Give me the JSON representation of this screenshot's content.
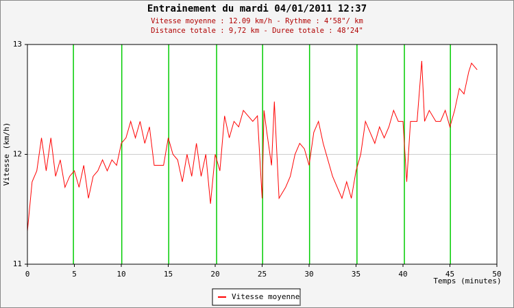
{
  "chart_data": {
    "type": "line",
    "title": "Entrainement du mardi 04/01/2011 12:37",
    "subtitle": [
      "Vitesse moyenne : 12.09 km/h - Rythme : 4’58\"/ km",
      "Distance totale : 9,72 km - Duree totale : 48’24\""
    ],
    "x_label": "Temps (minutes)",
    "y_label": "Vitesse (km/h)",
    "xlim": [
      0,
      50
    ],
    "xticks": [
      0,
      5,
      10,
      15,
      20,
      25,
      30,
      35,
      40,
      45,
      50
    ],
    "ylim": [
      11,
      13
    ],
    "yticks": [
      11,
      12,
      13
    ],
    "grid": true,
    "markers": [
      4.9,
      10.05,
      15.05,
      20.15,
      25.05,
      30.05,
      35.1,
      40.15,
      45.05
    ],
    "marker_color": "#00cc00",
    "legend": "bottom",
    "series": [
      {
        "name": "Vitesse moyenne",
        "color": "#ff0000",
        "x": [
          0,
          0.5,
          1,
          1.5,
          2,
          2.5,
          3,
          3.5,
          4,
          4.5,
          5,
          5.5,
          6,
          6.5,
          7,
          7.5,
          8,
          8.5,
          9,
          9.5,
          10,
          10.5,
          11,
          11.5,
          12,
          12.5,
          13,
          13.5,
          14,
          14.5,
          15,
          15.5,
          16,
          16.5,
          17,
          17.5,
          18,
          18.5,
          19,
          19.5,
          20,
          20.5,
          21,
          21.5,
          22,
          22.5,
          23,
          23.5,
          24,
          24.5,
          25,
          25.2,
          25.5,
          26,
          26.3,
          26.8,
          27.5,
          28,
          28.5,
          29,
          29.5,
          30,
          30.5,
          31,
          31.5,
          32,
          32.5,
          33,
          33.5,
          34,
          34.5,
          35,
          35.5,
          36,
          36.5,
          37,
          37.5,
          38,
          38.5,
          39,
          39.5,
          40,
          40.4,
          40.8,
          41.5,
          42,
          42.3,
          42.8,
          43.5,
          44,
          44.5,
          45,
          45.5,
          46,
          46.5,
          47,
          47.3,
          47.9
        ],
        "values": [
          11.3,
          11.75,
          11.85,
          12.15,
          11.85,
          12.15,
          11.8,
          11.95,
          11.7,
          11.8,
          11.85,
          11.7,
          11.9,
          11.6,
          11.8,
          11.85,
          11.95,
          11.85,
          11.95,
          11.9,
          12.1,
          12.15,
          12.3,
          12.15,
          12.3,
          12.1,
          12.25,
          11.9,
          11.9,
          11.9,
          12.15,
          12.0,
          11.95,
          11.75,
          12.0,
          11.8,
          12.1,
          11.8,
          12.0,
          11.55,
          12.0,
          11.85,
          12.35,
          12.15,
          12.3,
          12.25,
          12.4,
          12.35,
          12.3,
          12.35,
          11.6,
          12.4,
          12.2,
          11.9,
          12.48,
          11.6,
          11.7,
          11.8,
          12.0,
          12.1,
          12.05,
          11.9,
          12.2,
          12.3,
          12.1,
          11.95,
          11.8,
          11.7,
          11.6,
          11.75,
          11.6,
          11.85,
          12.0,
          12.3,
          12.2,
          12.1,
          12.25,
          12.15,
          12.25,
          12.4,
          12.3,
          12.3,
          11.75,
          12.3,
          12.3,
          12.85,
          12.3,
          12.4,
          12.3,
          12.3,
          12.4,
          12.25,
          12.4,
          12.6,
          12.55,
          12.75,
          12.83,
          12.77
        ]
      }
    ]
  }
}
